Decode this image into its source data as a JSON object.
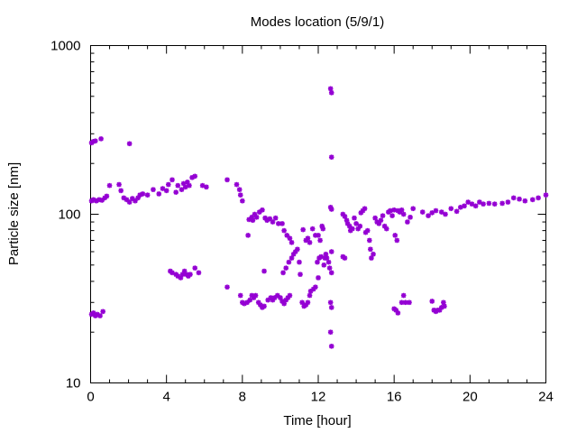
{
  "chart_data": {
    "type": "scatter",
    "title": "Modes location (5/9/1)",
    "xlabel": "Time [hour]",
    "ylabel": "Particle size [nm]",
    "xlim": [
      0,
      24
    ],
    "ylim": [
      10,
      1000
    ],
    "yscale": "log",
    "x_ticks": [
      0,
      4,
      8,
      12,
      16,
      20,
      24
    ],
    "x_tick_labels": [
      "0",
      "4",
      "8",
      "12",
      "16",
      "20",
      "24"
    ],
    "y_ticks": [
      10,
      100,
      1000
    ],
    "y_tick_labels": [
      "10",
      "100",
      "1000"
    ],
    "grid": false,
    "marker_color": "#9400d3",
    "series": [
      {
        "points": [
          [
            0.05,
            265
          ],
          [
            0.15,
            270
          ],
          [
            0.25,
            272
          ],
          [
            0.55,
            280
          ],
          [
            2.05,
            262
          ],
          [
            0.05,
            120
          ],
          [
            0.15,
            122
          ],
          [
            0.3,
            120
          ],
          [
            0.45,
            122
          ],
          [
            0.6,
            121
          ],
          [
            0.75,
            125
          ],
          [
            0.85,
            128
          ],
          [
            1.0,
            148
          ],
          [
            1.5,
            150
          ],
          [
            1.6,
            138
          ],
          [
            1.75,
            125
          ],
          [
            1.9,
            122
          ],
          [
            2.05,
            118
          ],
          [
            2.2,
            124
          ],
          [
            2.35,
            120
          ],
          [
            2.5,
            125
          ],
          [
            2.6,
            130
          ],
          [
            2.75,
            132
          ],
          [
            3.0,
            130
          ],
          [
            3.3,
            140
          ],
          [
            3.6,
            132
          ],
          [
            3.8,
            142
          ],
          [
            4.0,
            138
          ],
          [
            4.1,
            150
          ],
          [
            4.3,
            160
          ],
          [
            4.5,
            135
          ],
          [
            4.6,
            148
          ],
          [
            4.8,
            140
          ],
          [
            4.9,
            152
          ],
          [
            5.0,
            145
          ],
          [
            5.1,
            155
          ],
          [
            5.2,
            148
          ],
          [
            5.35,
            165
          ],
          [
            5.5,
            168
          ],
          [
            5.9,
            148
          ],
          [
            6.1,
            145
          ],
          [
            7.2,
            160
          ],
          [
            7.7,
            150
          ],
          [
            7.85,
            140
          ],
          [
            7.9,
            130
          ],
          [
            8.0,
            120
          ],
          [
            0.05,
            25.5
          ],
          [
            0.15,
            26
          ],
          [
            0.25,
            25
          ],
          [
            0.35,
            25.5
          ],
          [
            0.5,
            25
          ],
          [
            0.65,
            26.5
          ],
          [
            4.2,
            46
          ],
          [
            4.3,
            45
          ],
          [
            4.5,
            44
          ],
          [
            4.6,
            43
          ],
          [
            4.75,
            42
          ],
          [
            4.85,
            44
          ],
          [
            4.95,
            46
          ],
          [
            5.05,
            44
          ],
          [
            5.15,
            43
          ],
          [
            5.25,
            44
          ],
          [
            5.5,
            48
          ],
          [
            5.7,
            45
          ],
          [
            7.2,
            37
          ],
          [
            7.9,
            33
          ],
          [
            8.0,
            30
          ],
          [
            8.1,
            29.5
          ],
          [
            8.25,
            30
          ],
          [
            8.4,
            31
          ],
          [
            8.5,
            33
          ],
          [
            8.6,
            32
          ],
          [
            8.7,
            33
          ],
          [
            8.85,
            30
          ],
          [
            8.95,
            29
          ],
          [
            9.05,
            28
          ],
          [
            9.15,
            28.5
          ],
          [
            9.35,
            31
          ],
          [
            9.5,
            32
          ],
          [
            9.6,
            31
          ],
          [
            9.7,
            32
          ],
          [
            9.85,
            33
          ],
          [
            10.0,
            32
          ],
          [
            10.1,
            30.5
          ],
          [
            10.2,
            29.5
          ],
          [
            10.3,
            31
          ],
          [
            10.4,
            32
          ],
          [
            10.5,
            33
          ],
          [
            8.3,
            75
          ],
          [
            8.35,
            93
          ],
          [
            8.5,
            96
          ],
          [
            8.55,
            92
          ],
          [
            8.65,
            100
          ],
          [
            8.75,
            96
          ],
          [
            8.9,
            103
          ],
          [
            9.05,
            106
          ],
          [
            9.2,
            95
          ],
          [
            9.3,
            92
          ],
          [
            9.45,
            94
          ],
          [
            9.6,
            90
          ],
          [
            9.75,
            95
          ],
          [
            9.9,
            88
          ],
          [
            10.1,
            88
          ],
          [
            10.2,
            80
          ],
          [
            10.35,
            75
          ],
          [
            10.5,
            72
          ],
          [
            10.6,
            68
          ],
          [
            9.15,
            46
          ],
          [
            10.15,
            45
          ],
          [
            10.3,
            48
          ],
          [
            10.45,
            52
          ],
          [
            10.6,
            55
          ],
          [
            10.7,
            58
          ],
          [
            10.8,
            60
          ],
          [
            10.9,
            62
          ],
          [
            11.0,
            52
          ],
          [
            11.05,
            44
          ],
          [
            11.15,
            30
          ],
          [
            11.25,
            28.5
          ],
          [
            11.35,
            29
          ],
          [
            11.45,
            30
          ],
          [
            11.55,
            33
          ],
          [
            11.6,
            35
          ],
          [
            11.75,
            36
          ],
          [
            11.85,
            37
          ],
          [
            12.0,
            42
          ],
          [
            11.2,
            81
          ],
          [
            11.35,
            70
          ],
          [
            11.45,
            72
          ],
          [
            11.55,
            68
          ],
          [
            11.7,
            82
          ],
          [
            11.85,
            75
          ],
          [
            12.0,
            75
          ],
          [
            12.1,
            70
          ],
          [
            12.2,
            85
          ],
          [
            12.25,
            82
          ],
          [
            12.3,
            50
          ],
          [
            12.35,
            55
          ],
          [
            12.4,
            58
          ],
          [
            11.95,
            52
          ],
          [
            12.05,
            55
          ],
          [
            12.15,
            56
          ],
          [
            12.45,
            55
          ],
          [
            12.55,
            52
          ],
          [
            12.6,
            48
          ],
          [
            12.65,
            555
          ],
          [
            12.7,
            525
          ],
          [
            12.7,
            218
          ],
          [
            12.65,
            110
          ],
          [
            12.7,
            107
          ],
          [
            12.7,
            60
          ],
          [
            12.7,
            45
          ],
          [
            12.65,
            30
          ],
          [
            12.7,
            28
          ],
          [
            12.65,
            20
          ],
          [
            12.7,
            16.5
          ],
          [
            13.3,
            100
          ],
          [
            13.4,
            97
          ],
          [
            13.5,
            92
          ],
          [
            13.55,
            88
          ],
          [
            13.65,
            85
          ],
          [
            13.7,
            80
          ],
          [
            13.8,
            82
          ],
          [
            13.9,
            95
          ],
          [
            14.0,
            88
          ],
          [
            14.1,
            82
          ],
          [
            14.2,
            85
          ],
          [
            14.25,
            102
          ],
          [
            14.35,
            105
          ],
          [
            14.45,
            108
          ],
          [
            14.5,
            78
          ],
          [
            14.6,
            80
          ],
          [
            14.7,
            70
          ],
          [
            14.75,
            62
          ],
          [
            14.8,
            55
          ],
          [
            14.9,
            58
          ],
          [
            15.0,
            95
          ],
          [
            15.1,
            90
          ],
          [
            15.2,
            88
          ],
          [
            15.3,
            92
          ],
          [
            15.4,
            98
          ],
          [
            15.5,
            85
          ],
          [
            15.6,
            82
          ],
          [
            15.7,
            103
          ],
          [
            15.8,
            105
          ],
          [
            15.9,
            98
          ],
          [
            16.0,
            106
          ],
          [
            16.05,
            75
          ],
          [
            16.15,
            70
          ],
          [
            16.2,
            105
          ],
          [
            16.3,
            103
          ],
          [
            16.4,
            106
          ],
          [
            16.5,
            100
          ],
          [
            16.7,
            90
          ],
          [
            16.85,
            96
          ],
          [
            13.3,
            56
          ],
          [
            13.4,
            55
          ],
          [
            16.0,
            27.5
          ],
          [
            16.1,
            27
          ],
          [
            16.2,
            26
          ],
          [
            16.4,
            30
          ],
          [
            16.5,
            33
          ],
          [
            16.6,
            30
          ],
          [
            16.8,
            30
          ],
          [
            17.0,
            108
          ],
          [
            17.5,
            103
          ],
          [
            17.8,
            98
          ],
          [
            18.0,
            102
          ],
          [
            18.2,
            105
          ],
          [
            18.5,
            103
          ],
          [
            18.7,
            100
          ],
          [
            19.0,
            108
          ],
          [
            19.3,
            104
          ],
          [
            19.5,
            110
          ],
          [
            19.7,
            112
          ],
          [
            19.9,
            118
          ],
          [
            20.1,
            115
          ],
          [
            20.3,
            112
          ],
          [
            20.5,
            118
          ],
          [
            20.7,
            115
          ],
          [
            21.0,
            116
          ],
          [
            21.3,
            115
          ],
          [
            21.7,
            116
          ],
          [
            22.0,
            118
          ],
          [
            22.3,
            125
          ],
          [
            22.6,
            123
          ],
          [
            22.9,
            120
          ],
          [
            23.3,
            122
          ],
          [
            23.6,
            125
          ],
          [
            24.0,
            130
          ],
          [
            18.0,
            30.5
          ],
          [
            18.1,
            27
          ],
          [
            18.2,
            26.5
          ],
          [
            18.3,
            27
          ],
          [
            18.4,
            27
          ],
          [
            18.5,
            28
          ],
          [
            18.6,
            30
          ],
          [
            18.65,
            28.5
          ]
        ]
      }
    ]
  }
}
